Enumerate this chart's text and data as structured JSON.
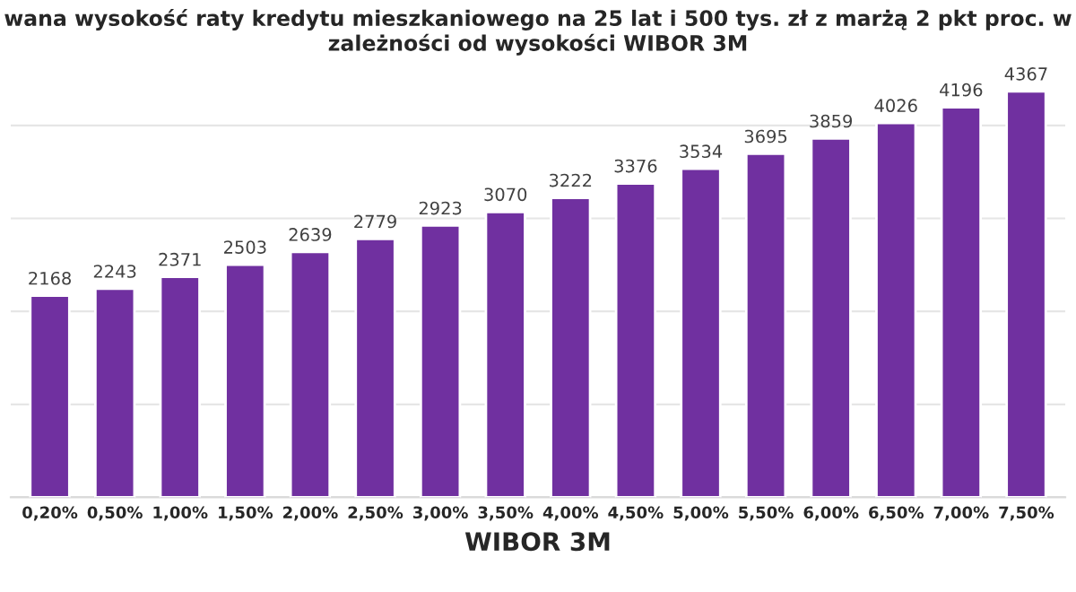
{
  "chart_data": {
    "type": "bar",
    "title": "wana wysokość raty kredytu mieszkaniowego na 25 lat i 500 tys. zł z marżą 2 pkt proc. w zależności od wysokości WIBOR 3M",
    "xlabel": "WIBOR 3M",
    "categories": [
      "0,20%",
      "0,50%",
      "1,00%",
      "1,50%",
      "2,00%",
      "2,50%",
      "3,00%",
      "3,50%",
      "4,00%",
      "4,50%",
      "5,00%",
      "5,50%",
      "6,00%",
      "6,50%",
      "7,00%",
      "7,50%"
    ],
    "values": [
      2168,
      2243,
      2371,
      2503,
      2639,
      2779,
      2923,
      3070,
      3222,
      3376,
      3534,
      3695,
      3859,
      4026,
      4196,
      4367
    ],
    "color": "#7030a0",
    "data_labels": true,
    "grid": "y",
    "tick_labels": "x"
  }
}
